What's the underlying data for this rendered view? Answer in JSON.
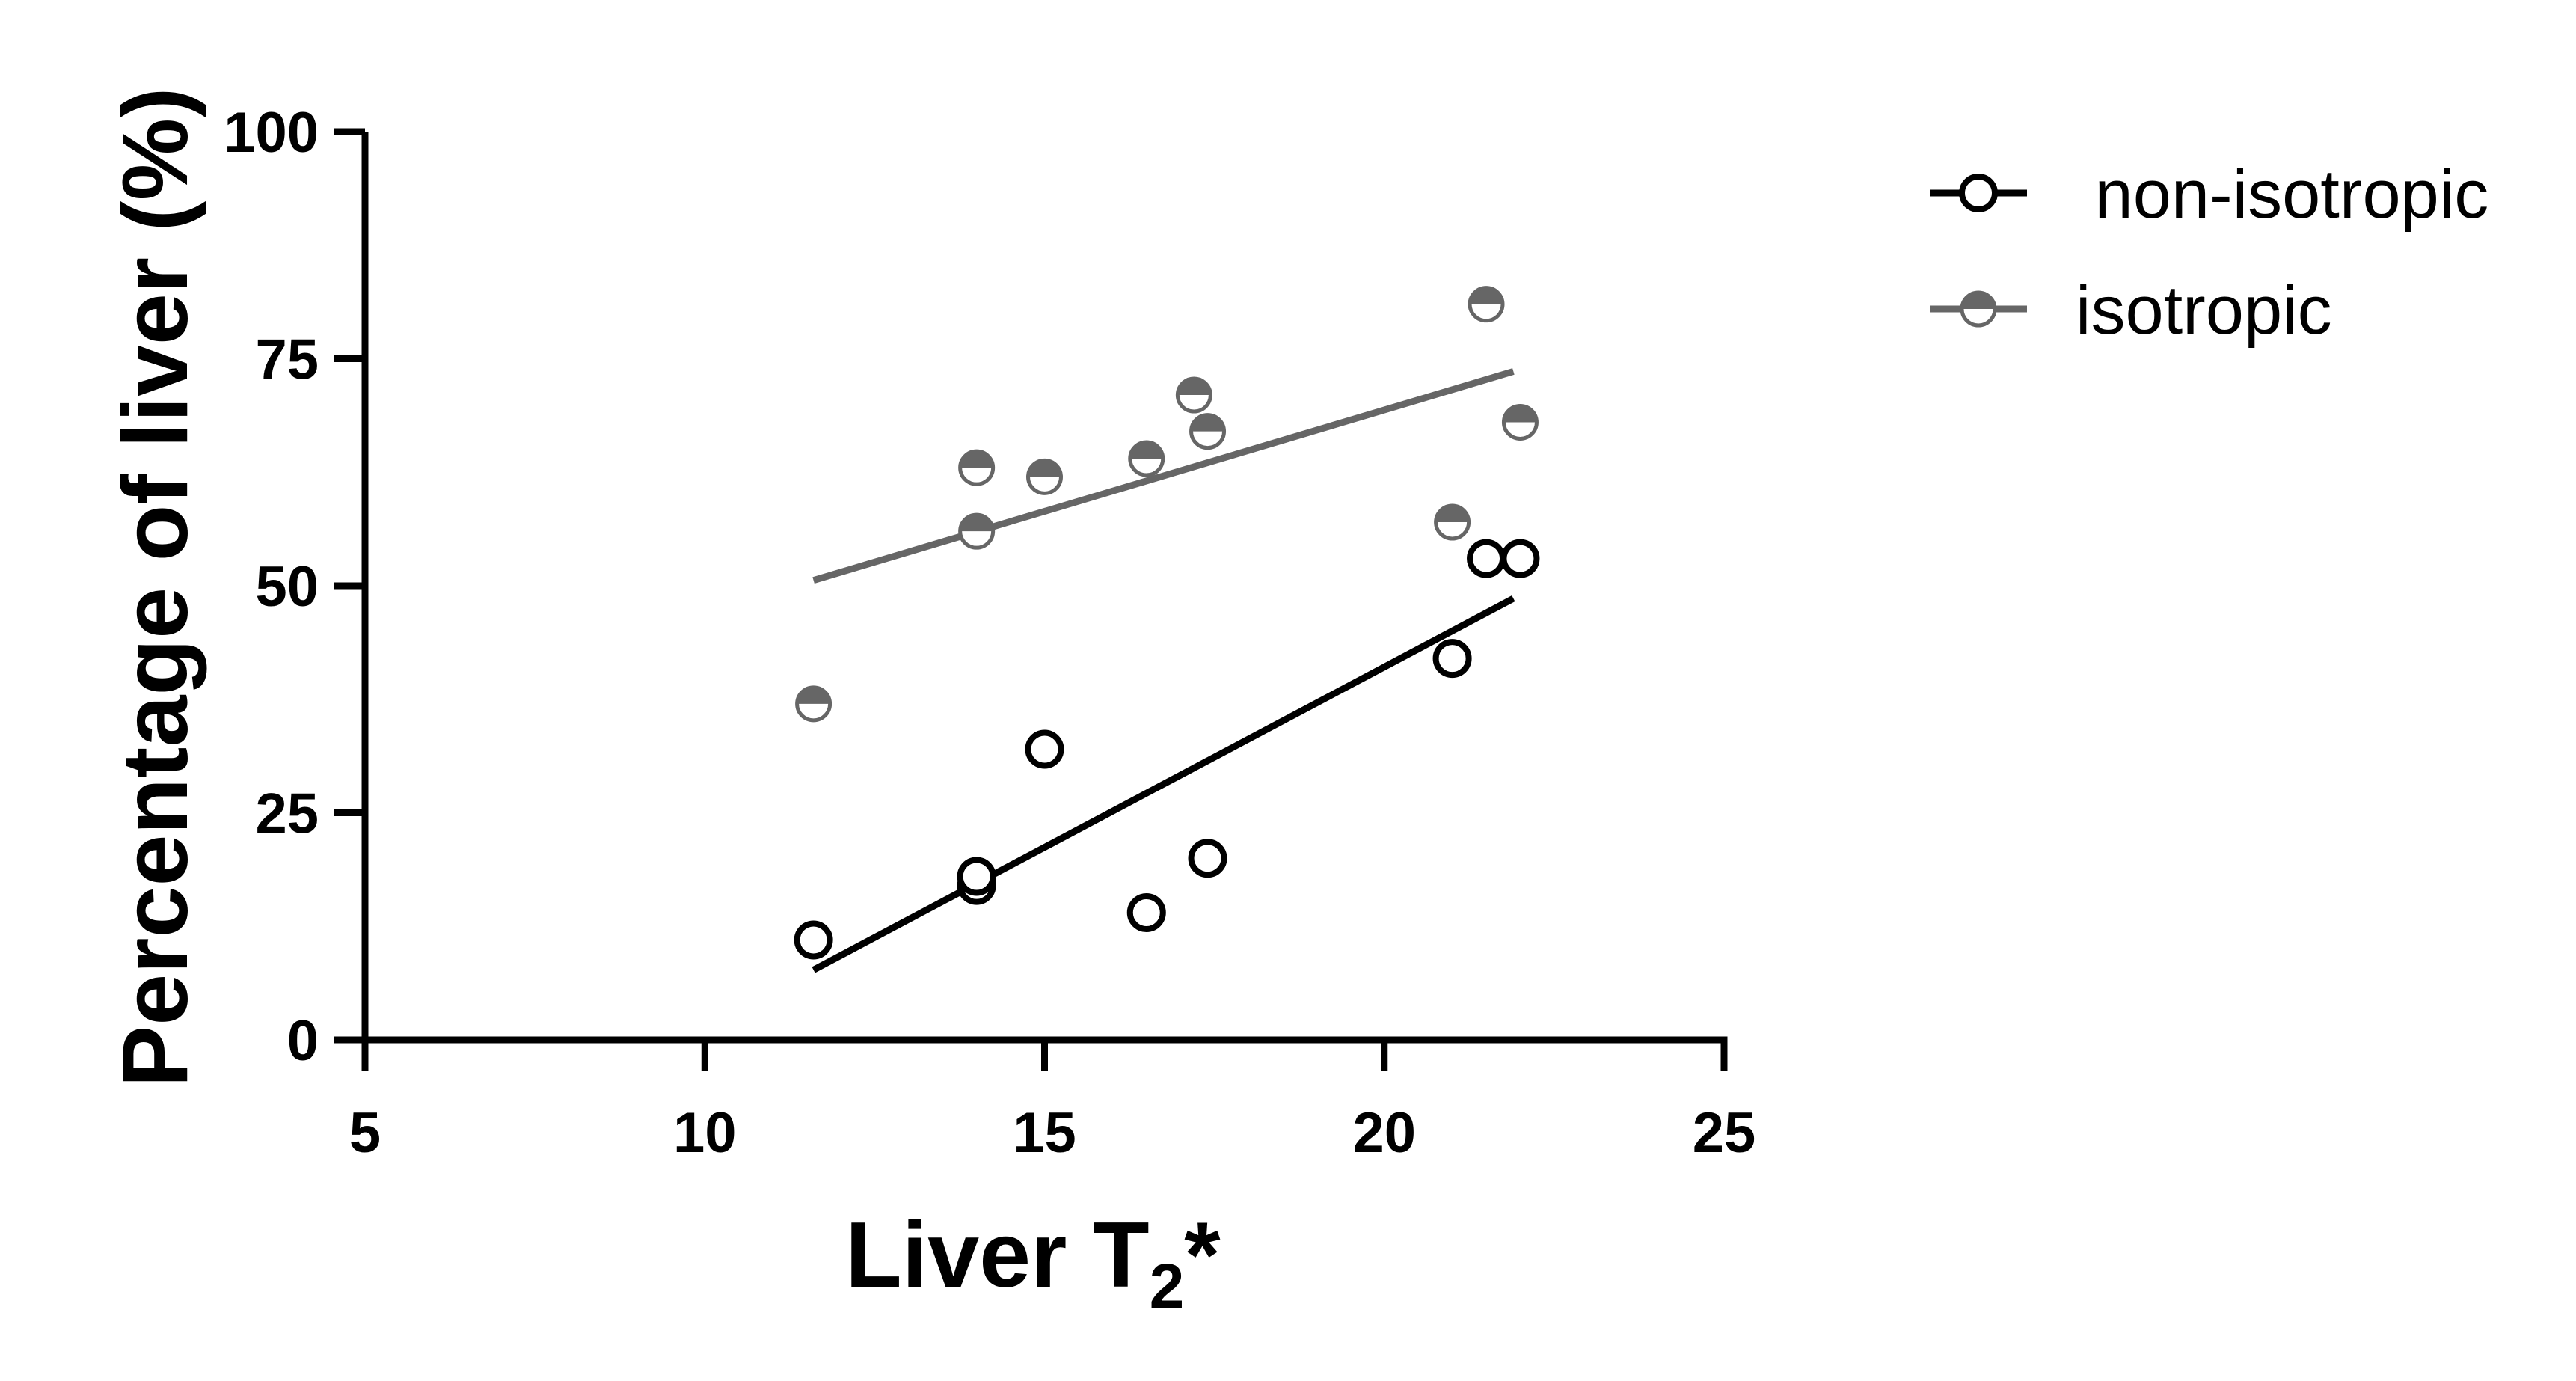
{
  "chart_data": {
    "type": "scatter",
    "title": "",
    "xlabel": "Liver T",
    "xlabel_subscript": "2",
    "xlabel_suffix": "*",
    "ylabel": "Percentage of liver (%)",
    "xlim": [
      5,
      25
    ],
    "ylim": [
      0,
      100
    ],
    "xticks": [
      5,
      10,
      15,
      20,
      25
    ],
    "yticks": [
      0,
      25,
      50,
      75,
      100
    ],
    "xtick_labels": [
      "5",
      "10",
      "15",
      "20",
      "25"
    ],
    "ytick_labels": [
      "0",
      "25",
      "50",
      "75",
      "100"
    ],
    "grid": false,
    "legend_position": "top-right",
    "series": [
      {
        "name": " non-isotropic",
        "marker": "open-circle",
        "color": "#000000",
        "points": [
          {
            "x": 11.6,
            "y": 11
          },
          {
            "x": 14.0,
            "y": 17
          },
          {
            "x": 14.0,
            "y": 18
          },
          {
            "x": 15.0,
            "y": 32
          },
          {
            "x": 16.5,
            "y": 14
          },
          {
            "x": 17.4,
            "y": 20
          },
          {
            "x": 21.0,
            "y": 42
          },
          {
            "x": 21.5,
            "y": 53
          },
          {
            "x": 22.0,
            "y": 53
          }
        ],
        "fit_line": {
          "x": [
            11.6,
            21.9
          ],
          "y": [
            7.7,
            48.6
          ]
        }
      },
      {
        "name": "isotropic",
        "marker": "half-filled-circle",
        "color": "#666666",
        "points": [
          {
            "x": 11.6,
            "y": 37
          },
          {
            "x": 14.0,
            "y": 63
          },
          {
            "x": 14.0,
            "y": 56
          },
          {
            "x": 15.0,
            "y": 62
          },
          {
            "x": 16.5,
            "y": 64
          },
          {
            "x": 17.2,
            "y": 71
          },
          {
            "x": 17.4,
            "y": 67
          },
          {
            "x": 21.0,
            "y": 57
          },
          {
            "x": 21.5,
            "y": 81
          },
          {
            "x": 22.0,
            "y": 68
          }
        ],
        "fit_line": {
          "x": [
            11.6,
            21.9
          ],
          "y": [
            50.6,
            73.6
          ]
        }
      }
    ]
  }
}
